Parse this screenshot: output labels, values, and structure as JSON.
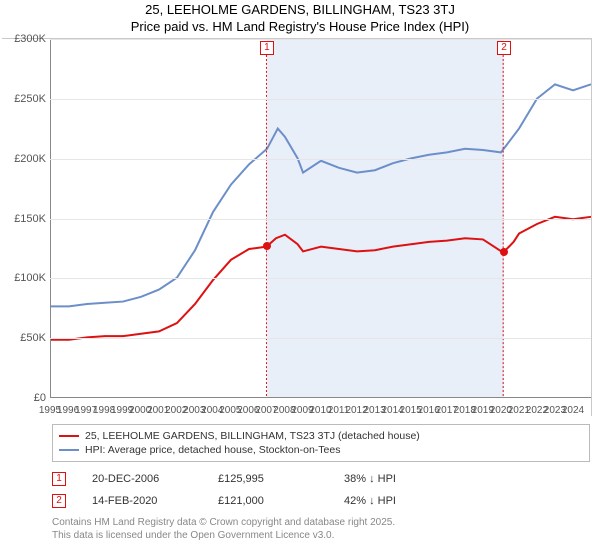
{
  "title_line1": "25, LEEHOLME GARDENS, BILLINGHAM, TS23 3TJ",
  "title_line2": "Price paid vs. HM Land Registry's House Price Index (HPI)",
  "chart": {
    "type": "line",
    "x_start_year": 1995,
    "x_end_year": 2025,
    "x_ticks": [
      1995,
      1996,
      1997,
      1998,
      1999,
      2000,
      2001,
      2002,
      2003,
      2004,
      2005,
      2006,
      2007,
      2008,
      2009,
      2010,
      2011,
      2012,
      2013,
      2014,
      2015,
      2016,
      2017,
      2018,
      2019,
      2020,
      2021,
      2022,
      2023,
      2024
    ],
    "y_min": 0,
    "y_max": 300000,
    "y_ticks": [
      0,
      50000,
      100000,
      150000,
      200000,
      250000,
      300000
    ],
    "y_tick_labels": [
      "£0",
      "£50K",
      "£100K",
      "£150K",
      "£200K",
      "£250K",
      "£300K"
    ],
    "grid_color": "#e6e6e6",
    "axis_color": "#888888",
    "background_color": "#ffffff",
    "shaded_region": {
      "start_year": 2006.97,
      "end_year": 2020.12,
      "color": "#d7e2f4"
    },
    "series": [
      {
        "name": "property",
        "label": "25, LEEHOLME GARDENS, BILLINGHAM, TS23 3TJ (detached house)",
        "color": "#dd1111",
        "line_width": 2,
        "points": [
          [
            1995,
            48000
          ],
          [
            1996,
            48000
          ],
          [
            1997,
            50000
          ],
          [
            1998,
            51000
          ],
          [
            1999,
            51000
          ],
          [
            2000,
            53000
          ],
          [
            2001,
            55000
          ],
          [
            2002,
            62000
          ],
          [
            2003,
            78000
          ],
          [
            2004,
            98000
          ],
          [
            2005,
            115000
          ],
          [
            2006,
            124000
          ],
          [
            2006.97,
            125995
          ],
          [
            2007.5,
            133000
          ],
          [
            2008,
            136000
          ],
          [
            2008.7,
            128000
          ],
          [
            2009,
            122000
          ],
          [
            2010,
            126000
          ],
          [
            2011,
            124000
          ],
          [
            2012,
            122000
          ],
          [
            2013,
            123000
          ],
          [
            2014,
            126000
          ],
          [
            2015,
            128000
          ],
          [
            2016,
            130000
          ],
          [
            2017,
            131000
          ],
          [
            2018,
            133000
          ],
          [
            2019,
            132000
          ],
          [
            2020.12,
            121000
          ],
          [
            2020.7,
            130000
          ],
          [
            2021,
            137000
          ],
          [
            2022,
            145000
          ],
          [
            2023,
            151000
          ],
          [
            2024,
            149000
          ],
          [
            2025,
            151000
          ]
        ]
      },
      {
        "name": "hpi",
        "label": "HPI: Average price, detached house, Stockton-on-Tees",
        "color": "#6d8fc9",
        "line_width": 2,
        "points": [
          [
            1995,
            76000
          ],
          [
            1996,
            76000
          ],
          [
            1997,
            78000
          ],
          [
            1998,
            79000
          ],
          [
            1999,
            80000
          ],
          [
            2000,
            84000
          ],
          [
            2001,
            90000
          ],
          [
            2002,
            100000
          ],
          [
            2003,
            123000
          ],
          [
            2004,
            155000
          ],
          [
            2005,
            178000
          ],
          [
            2006,
            195000
          ],
          [
            2007,
            208000
          ],
          [
            2007.6,
            225000
          ],
          [
            2008,
            218000
          ],
          [
            2008.7,
            200000
          ],
          [
            2009,
            188000
          ],
          [
            2010,
            198000
          ],
          [
            2011,
            192000
          ],
          [
            2012,
            188000
          ],
          [
            2013,
            190000
          ],
          [
            2014,
            196000
          ],
          [
            2015,
            200000
          ],
          [
            2016,
            203000
          ],
          [
            2017,
            205000
          ],
          [
            2018,
            208000
          ],
          [
            2019,
            207000
          ],
          [
            2020,
            205000
          ],
          [
            2021,
            225000
          ],
          [
            2022,
            250000
          ],
          [
            2023,
            262000
          ],
          [
            2024,
            257000
          ],
          [
            2025,
            262000
          ]
        ]
      }
    ],
    "sale_markers": [
      {
        "n": "1",
        "year": 2006.97,
        "price": 125995
      },
      {
        "n": "2",
        "year": 2020.12,
        "price": 121000
      }
    ]
  },
  "legend": {
    "items": [
      {
        "color": "#dd1111",
        "label": "25, LEEHOLME GARDENS, BILLINGHAM, TS23 3TJ (detached house)"
      },
      {
        "color": "#6d8fc9",
        "label": "HPI: Average price, detached house, Stockton-on-Tees"
      }
    ]
  },
  "transactions": [
    {
      "n": "1",
      "date": "20-DEC-2006",
      "price": "£125,995",
      "delta": "38% ↓ HPI"
    },
    {
      "n": "2",
      "date": "14-FEB-2020",
      "price": "£121,000",
      "delta": "42% ↓ HPI"
    }
  ],
  "footer_line1": "Contains HM Land Registry data © Crown copyright and database right 2025.",
  "footer_line2": "This data is licensed under the Open Government Licence v3.0."
}
